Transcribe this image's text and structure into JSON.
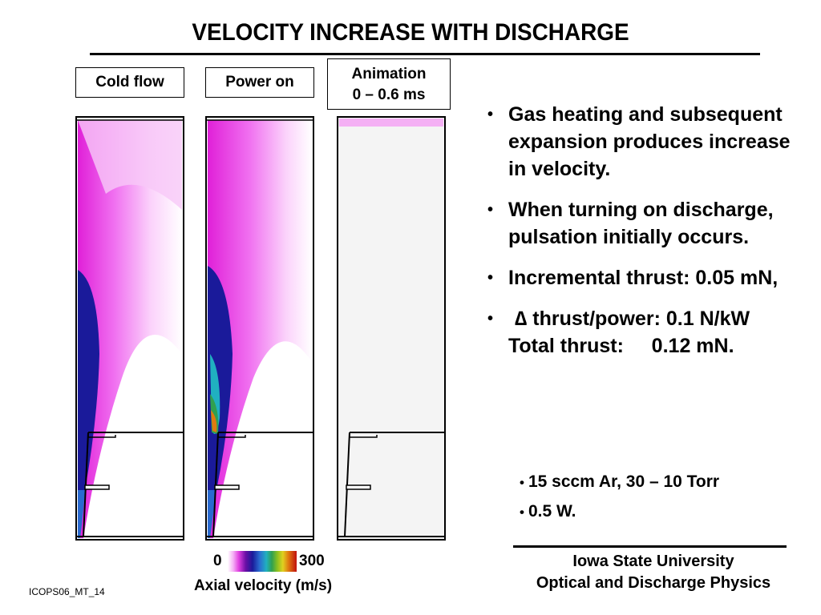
{
  "title": "VELOCITY INCREASE WITH DISCHARGE",
  "panels": [
    {
      "label": "Cold flow"
    },
    {
      "label": "Power on"
    },
    {
      "label_line1": "Animation",
      "label_line2": "0 – 0.6 ms"
    }
  ],
  "bullets": [
    "Gas heating and subsequent expansion produces increase in velocity.",
    "When turning on discharge, pulsation initially occurs.",
    "Incremental thrust: 0.05 mN,"
  ],
  "delta_bullet": {
    "line1": "∆ thrust/power: 0.1 N/kW",
    "line2": "Total thrust:     0.12 mN."
  },
  "sub_bullets": [
    "15 sccm Ar, 30 – 10 Torr",
    "0.5 W."
  ],
  "colorbar": {
    "min": "0",
    "max": "300",
    "label": "Axial velocity (m/s)"
  },
  "footer": {
    "line1": "Iowa State University",
    "line2": "Optical and Discharge Physics"
  },
  "slide_id": "ICOPS06_MT_14",
  "bullet_symbol": "•",
  "colors": {
    "magenta": "#e040e0",
    "light_pink": "#f8d0f8",
    "dark_blue": "#1a1a9a"
  }
}
